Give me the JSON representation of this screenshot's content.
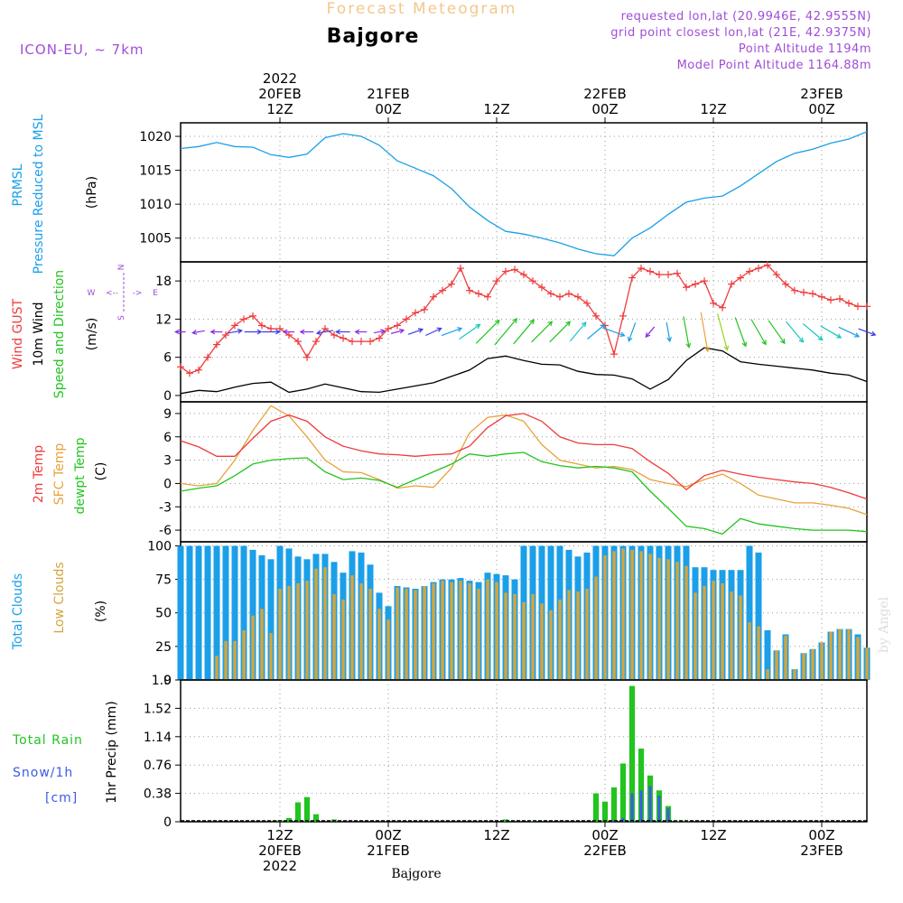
{
  "header": {
    "forecast_title": "Forecast Meteogram",
    "location": "Bajgore",
    "model": "ICON-EU, ~ 7km",
    "requested": "requested lon,lat (20.9946E, 42.9555N)",
    "grid_point": "grid point closest lon,lat (21E, 42.9375N)",
    "point_altitude": "Point Altitude 1194m",
    "model_point_altitude": "Model Point Altitude 1164.88m"
  },
  "footer": {
    "location": "Bajgore",
    "watermark": "by Angel"
  },
  "colors": {
    "pressure": "#1b9fe8",
    "gust": "#ef3b3b",
    "wind": "#000000",
    "t2m": "#ef3b3b",
    "sfc": "#e8a23a",
    "dewpt": "#22c41f",
    "total_clouds": "#1b9fe8",
    "low_clouds": "#d4a53c",
    "rain": "#22c41f",
    "snow": "#3b5be8",
    "meta": "#a04dd6",
    "forecast_title": "#f3c88a"
  },
  "chart_data": [
    {
      "id": "pressure",
      "type": "line",
      "title": "PRMSL Pressure Reduced to MSL",
      "ylabels": [
        "PRMSL",
        "Pressure Reduced to MSL",
        "(hPa)"
      ],
      "ylim": [
        1001.5,
        1022
      ],
      "yticks": [
        1005,
        1010,
        1015,
        1020
      ],
      "x": [
        0,
        2,
        4,
        6,
        8,
        10,
        12,
        14,
        16,
        18,
        20,
        22,
        24,
        26,
        28,
        30,
        32,
        34,
        36,
        38,
        40,
        42,
        44,
        46,
        48,
        49,
        50,
        52,
        54,
        56,
        58,
        60,
        62,
        64,
        66,
        68,
        70,
        72,
        74,
        76
      ],
      "values": [
        1018.2,
        1018.5,
        1019.1,
        1018.5,
        1018.4,
        1017.3,
        1016.9,
        1017.4,
        1019.8,
        1020.4,
        1020.0,
        1018.7,
        1016.4,
        1015.3,
        1014.2,
        1012.3,
        1009.6,
        1007.6,
        1006.0,
        1005.6,
        1005.0,
        1004.3,
        1003.4,
        1002.7,
        1002.4,
        1003.7,
        1005.0,
        1006.5,
        1008.5,
        1010.3,
        1010.9,
        1011.2,
        1012.7,
        1014.5,
        1016.3,
        1017.5,
        1018.1,
        1019.0,
        1019.6,
        1020.7
      ]
    },
    {
      "id": "wind",
      "type": "line",
      "title": "Wind GUST, 10m Wind Speed and Direction",
      "ylabels": [
        "Wind GUST",
        "10m Wind",
        "Speed and Direction",
        "(m/s)"
      ],
      "compass": {
        "n": "N",
        "s": "S",
        "w": "W",
        "e": "E",
        "arrow_l": "<--",
        "arrow_r": "->"
      },
      "ylim": [
        -1,
        21
      ],
      "yticks": [
        0,
        6,
        12,
        18
      ],
      "gust": {
        "name": "Wind GUST",
        "x": [
          0,
          1,
          2,
          3,
          4,
          5,
          6,
          7,
          8,
          9,
          10,
          11,
          12,
          13,
          14,
          15,
          16,
          17,
          18,
          19,
          20,
          21,
          22,
          23,
          24,
          25,
          26,
          27,
          28,
          29,
          30,
          31,
          32,
          33,
          34,
          35,
          36,
          37,
          38,
          39,
          40,
          41,
          42,
          43,
          44,
          45,
          46,
          47,
          48,
          49,
          50,
          51,
          52,
          53,
          54,
          55,
          56,
          57,
          58,
          59,
          60,
          61,
          62,
          63,
          64,
          65,
          66,
          67,
          68,
          69,
          70,
          71,
          72,
          73,
          74,
          75,
          76
        ],
        "values": [
          4.5,
          3.5,
          4.0,
          6.0,
          8.0,
          9.5,
          11.0,
          12.0,
          12.5,
          11.0,
          10.5,
          10.5,
          9.5,
          8.5,
          6.0,
          8.5,
          10.5,
          9.5,
          9.0,
          8.5,
          8.5,
          8.5,
          9.0,
          10.5,
          11.0,
          12.0,
          13.0,
          13.5,
          15.5,
          16.5,
          17.5,
          20.0,
          16.5,
          16.0,
          15.5,
          18.0,
          19.5,
          19.8,
          19.0,
          18.0,
          17.0,
          16.0,
          15.5,
          16.0,
          15.5,
          14.5,
          12.5,
          11.0,
          6.5,
          12.5,
          18.5,
          20.0,
          19.5,
          19.0,
          19.0,
          19.2,
          17.0,
          17.5,
          18.0,
          14.5,
          13.8,
          17.5,
          18.5,
          19.5,
          20.0,
          20.5,
          19.0,
          17.5,
          16.5,
          16.2,
          16.0,
          15.5,
          15.0,
          15.2,
          14.5,
          14.0,
          14.0
        ]
      },
      "speed": {
        "name": "10m Wind Speed",
        "x": [
          0,
          2,
          4,
          6,
          8,
          10,
          12,
          14,
          16,
          18,
          20,
          22,
          24,
          26,
          28,
          30,
          32,
          34,
          36,
          38,
          40,
          42,
          44,
          46,
          48,
          50,
          52,
          54,
          56,
          58,
          60,
          62,
          64,
          66,
          68,
          70,
          72,
          74,
          76
        ],
        "values": [
          0.3,
          0.8,
          0.6,
          1.3,
          1.9,
          2.1,
          0.5,
          1.0,
          1.8,
          1.2,
          0.6,
          0.5,
          1.0,
          1.5,
          2.0,
          3.0,
          4.0,
          5.8,
          6.2,
          5.5,
          4.9,
          4.8,
          3.8,
          3.3,
          3.2,
          2.6,
          1.0,
          2.5,
          5.5,
          7.5,
          7.0,
          5.3,
          4.9,
          4.6,
          4.3,
          4.0,
          3.5,
          3.2,
          2.2
        ]
      },
      "direction_arrows": {
        "x": [
          0,
          2,
          4,
          6,
          8,
          10,
          12,
          14,
          16,
          18,
          20,
          22,
          24,
          26,
          28,
          30,
          32,
          34,
          36,
          38,
          40,
          42,
          44,
          46,
          48,
          50,
          52,
          54,
          56,
          58,
          60,
          62,
          64,
          66,
          68,
          70,
          72,
          74,
          76
        ],
        "speed": [
          0.3,
          0.8,
          0.6,
          1.3,
          1.9,
          2.1,
          0.5,
          1.0,
          1.8,
          1.2,
          0.6,
          0.5,
          1.0,
          1.5,
          2.0,
          3.0,
          4.0,
          5.8,
          6.2,
          5.5,
          4.9,
          4.8,
          3.8,
          3.3,
          3.2,
          2.6,
          1.0,
          2.5,
          5.5,
          7.5,
          7.0,
          5.3,
          4.9,
          4.6,
          4.3,
          4.0,
          3.5,
          3.2,
          2.2
        ],
        "toward_deg": [
          270,
          260,
          270,
          80,
          90,
          90,
          270,
          270,
          260,
          270,
          270,
          80,
          75,
          70,
          65,
          70,
          55,
          45,
          40,
          40,
          45,
          45,
          40,
          50,
          110,
          200,
          220,
          170,
          170,
          170,
          165,
          160,
          150,
          145,
          140,
          130,
          120,
          115,
          110
        ]
      }
    },
    {
      "id": "temperature",
      "type": "line",
      "title": "2m Temp, SFC Temp, dewpt Temp",
      "ylabels": [
        "2m Temp",
        "SFC Temp",
        "dewpt Temp",
        "(C)"
      ],
      "ylim": [
        -7.5,
        10.5
      ],
      "yticks": [
        -6,
        -3,
        0,
        3,
        6,
        9
      ],
      "x": [
        0,
        2,
        4,
        6,
        8,
        10,
        12,
        14,
        16,
        18,
        20,
        22,
        24,
        26,
        28,
        30,
        32,
        34,
        36,
        38,
        40,
        42,
        44,
        46,
        48,
        50,
        52,
        54,
        56,
        58,
        60,
        62,
        64,
        66,
        68,
        70,
        72,
        74,
        76
      ],
      "series": [
        {
          "name": "2m Temp",
          "values": [
            5.5,
            4.7,
            3.5,
            3.5,
            5.8,
            8.0,
            8.8,
            8.0,
            6.0,
            4.8,
            4.2,
            3.8,
            3.7,
            3.5,
            3.7,
            3.8,
            4.8,
            7.2,
            8.7,
            9.0,
            8.0,
            6.0,
            5.2,
            5.0,
            5.0,
            4.5,
            2.8,
            1.3,
            -0.8,
            1.0,
            1.7,
            1.2,
            0.8,
            0.5,
            0.2,
            0.0,
            -0.5,
            -1.2,
            -2.0
          ]
        },
        {
          "name": "SFC Temp",
          "values": [
            0.0,
            -0.3,
            0.0,
            3.0,
            6.8,
            10.0,
            8.7,
            6.0,
            3.0,
            1.5,
            1.4,
            0.5,
            -0.6,
            -0.3,
            -0.5,
            2.0,
            6.5,
            8.5,
            8.8,
            8.0,
            5.0,
            3.0,
            2.5,
            2.0,
            2.2,
            1.8,
            0.5,
            0.0,
            -0.4,
            0.5,
            1.2,
            0.0,
            -1.5,
            -2.0,
            -2.5,
            -2.5,
            -2.8,
            -3.2,
            -4.0
          ]
        },
        {
          "name": "dewpt Temp",
          "values": [
            -1.0,
            -0.6,
            -0.3,
            1.0,
            2.5,
            3.0,
            3.2,
            3.3,
            1.5,
            0.5,
            0.7,
            0.4,
            -0.5,
            0.5,
            1.5,
            2.5,
            3.8,
            3.5,
            3.8,
            4.0,
            2.8,
            2.3,
            2.0,
            2.2,
            2.0,
            1.5,
            -1.0,
            -3.2,
            -5.5,
            -5.8,
            -6.5,
            -4.5,
            -5.2,
            -5.5,
            -5.8,
            -6.0,
            -6.0,
            -6.0,
            -6.2
          ]
        }
      ]
    },
    {
      "id": "clouds",
      "type": "bar",
      "title": "Total Clouds, Low Clouds",
      "ylabels": [
        "Total Clouds",
        "Low Clouds",
        "(%)"
      ],
      "ylim": [
        0,
        103
      ],
      "yticks": [
        0,
        25,
        50,
        75,
        100
      ],
      "x": [
        0,
        1,
        2,
        3,
        4,
        5,
        6,
        7,
        8,
        9,
        10,
        11,
        12,
        13,
        14,
        15,
        16,
        17,
        18,
        19,
        20,
        21,
        22,
        23,
        24,
        25,
        26,
        27,
        28,
        29,
        30,
        31,
        32,
        33,
        34,
        35,
        36,
        37,
        38,
        39,
        40,
        41,
        42,
        43,
        44,
        45,
        46,
        47,
        48,
        49,
        50,
        51,
        52,
        53,
        54,
        55,
        56,
        57,
        58,
        59,
        60,
        61,
        62,
        63,
        64,
        65,
        66,
        67,
        68,
        69,
        70,
        71,
        72,
        73,
        74,
        75,
        76
      ],
      "series": [
        {
          "name": "Total Clouds",
          "values": [
            100,
            100,
            100,
            100,
            100,
            100,
            100,
            100,
            97,
            93,
            90,
            100,
            98,
            92,
            90,
            94,
            94,
            88,
            80,
            96,
            95,
            86,
            65,
            55,
            70,
            69,
            68,
            70,
            73,
            75,
            75,
            76,
            74,
            73,
            80,
            79,
            78,
            75,
            100,
            100,
            100,
            100,
            100,
            97,
            92,
            95,
            100,
            100,
            100,
            100,
            100,
            100,
            100,
            100,
            100,
            100,
            100,
            84,
            84,
            82,
            82,
            82,
            82,
            100,
            95,
            37,
            22,
            34,
            8,
            20,
            23,
            28,
            36,
            38,
            38,
            34,
            24
          ]
        },
        {
          "name": "Low Clouds",
          "values": [
            0,
            0,
            0,
            0,
            18,
            29,
            29,
            37,
            48,
            53,
            35,
            68,
            70,
            72,
            74,
            83,
            84,
            64,
            60,
            78,
            72,
            68,
            53,
            45,
            69,
            68,
            67,
            70,
            72,
            74,
            73,
            74,
            72,
            68,
            75,
            73,
            65,
            64,
            58,
            64,
            57,
            52,
            60,
            67,
            66,
            68,
            77,
            93,
            96,
            98,
            97,
            96,
            94,
            91,
            90,
            88,
            85,
            65,
            70,
            74,
            72,
            66,
            63,
            43,
            40,
            8,
            22,
            33,
            8,
            20,
            23,
            28,
            36,
            38,
            38,
            32,
            24
          ]
        }
      ]
    },
    {
      "id": "precip",
      "type": "bar",
      "title": "Total Rain, Snow/1h [cm]",
      "ylabels": [
        "1hr Precip (mm)"
      ],
      "side_labels": {
        "rain": "Total Rain",
        "snow": "Snow/1h",
        "snow_unit": "[cm]"
      },
      "ylim": [
        0,
        1.9
      ],
      "yticks": [
        0,
        0.38,
        0.76,
        1.14,
        1.52,
        1.9
      ],
      "ytick_labels": [
        "0",
        "0.38",
        "0.76",
        "1.14",
        "1.52",
        "1.9"
      ],
      "rain": {
        "x": [
          11,
          12,
          13,
          14,
          15,
          17,
          36,
          39,
          46,
          47,
          48,
          49,
          50,
          51,
          52,
          53,
          54,
          55,
          56
        ],
        "values": [
          0.02,
          0.05,
          0.26,
          0.33,
          0.1,
          0.03,
          0.03,
          0.01,
          0.38,
          0.27,
          0.46,
          0.78,
          1.82,
          0.98,
          0.62,
          0.42,
          0.21,
          0.01,
          0.01
        ]
      },
      "snow": {
        "x": [
          48,
          49,
          50,
          51,
          52,
          53,
          54
        ],
        "values": [
          0.02,
          0.05,
          0.38,
          0.42,
          0.48,
          0.35,
          0.18
        ]
      }
    }
  ],
  "time_axis": {
    "x_range": [
      0,
      76
    ],
    "top_ticks": [
      {
        "x": 11,
        "lines": [
          "2022",
          "20FEB",
          "12Z"
        ]
      },
      {
        "x": 23,
        "lines": [
          "21FEB",
          "00Z"
        ]
      },
      {
        "x": 35,
        "lines": [
          "12Z"
        ]
      },
      {
        "x": 47,
        "lines": [
          "22FEB",
          "00Z"
        ]
      },
      {
        "x": 59,
        "lines": [
          "12Z"
        ]
      },
      {
        "x": 71,
        "lines": [
          "23FEB",
          "00Z"
        ]
      }
    ],
    "bottom_ticks": [
      {
        "x": 11,
        "lines": [
          "12Z",
          "20FEB",
          "2022"
        ]
      },
      {
        "x": 23,
        "lines": [
          "00Z",
          "21FEB"
        ]
      },
      {
        "x": 35,
        "lines": [
          "12Z"
        ]
      },
      {
        "x": 47,
        "lines": [
          "00Z",
          "22FEB"
        ]
      },
      {
        "x": 59,
        "lines": [
          "12Z"
        ]
      },
      {
        "x": 71,
        "lines": [
          "00Z",
          "23FEB"
        ]
      }
    ]
  }
}
